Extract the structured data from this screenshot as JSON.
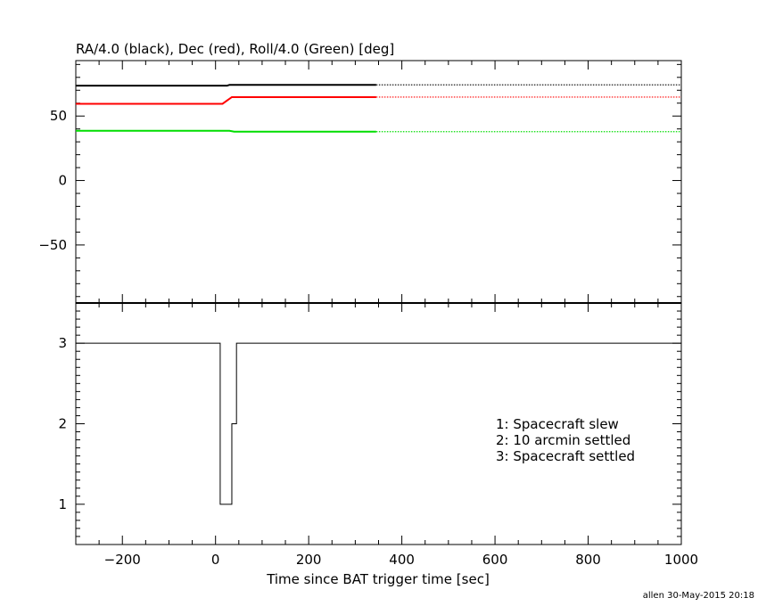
{
  "chart_data": [
    {
      "type": "line",
      "title": "RA/4.0 (black), Dec (red), Roll/4.0 (Green) [deg]",
      "ylim": [
        -95,
        93
      ],
      "xlim": [
        -300,
        1000
      ],
      "yticks": [
        -50,
        0,
        50
      ],
      "ytick_labels": [
        "−50",
        "0",
        "50"
      ],
      "series": [
        {
          "color": "#000000",
          "solid": {
            "x": [
              -300,
              25,
              30,
              345
            ],
            "y": [
              73.6,
              73.6,
              74.2,
              74.2
            ]
          },
          "dotted": {
            "x": [
              345,
              1000
            ],
            "y": [
              74.2,
              74.2
            ]
          }
        },
        {
          "color": "#ff0000",
          "solid": {
            "x": [
              -300,
              15,
              35,
              345
            ],
            "y": [
              59.5,
              59.5,
              64.7,
              64.7
            ]
          },
          "dotted": {
            "x": [
              345,
              1000
            ],
            "y": [
              64.7,
              64.7
            ]
          }
        },
        {
          "color": "#00dd00",
          "solid": {
            "x": [
              -300,
              30,
              40,
              345
            ],
            "y": [
              38.6,
              38.6,
              37.9,
              37.9
            ]
          },
          "dotted": {
            "x": [
              345,
              1000
            ],
            "y": [
              37.9,
              37.9
            ]
          }
        }
      ]
    },
    {
      "type": "line",
      "xlabel": "Time since BAT trigger time [sec]",
      "xlim": [
        -300,
        1000
      ],
      "ylim": [
        0.5,
        3.5
      ],
      "xticks": [
        -200,
        0,
        200,
        400,
        600,
        800,
        1000
      ],
      "xtick_labels": [
        "−200",
        "0",
        "200",
        "400",
        "600",
        "800",
        "1000"
      ],
      "yticks": [
        1,
        2,
        3
      ],
      "ytick_labels": [
        "1",
        "2",
        "3"
      ],
      "series": [
        {
          "color": "#000000",
          "x": [
            -300,
            10,
            10,
            35,
            35,
            45,
            45,
            1000
          ],
          "y": [
            3,
            3,
            1,
            1,
            2,
            2,
            3,
            3
          ]
        }
      ],
      "annotations": [
        "1: Spacecraft slew",
        "2: 10 arcmin settled",
        "3: Spacecraft settled"
      ]
    }
  ],
  "footer": {
    "credit": "allen 30-May-2015 20:18"
  }
}
